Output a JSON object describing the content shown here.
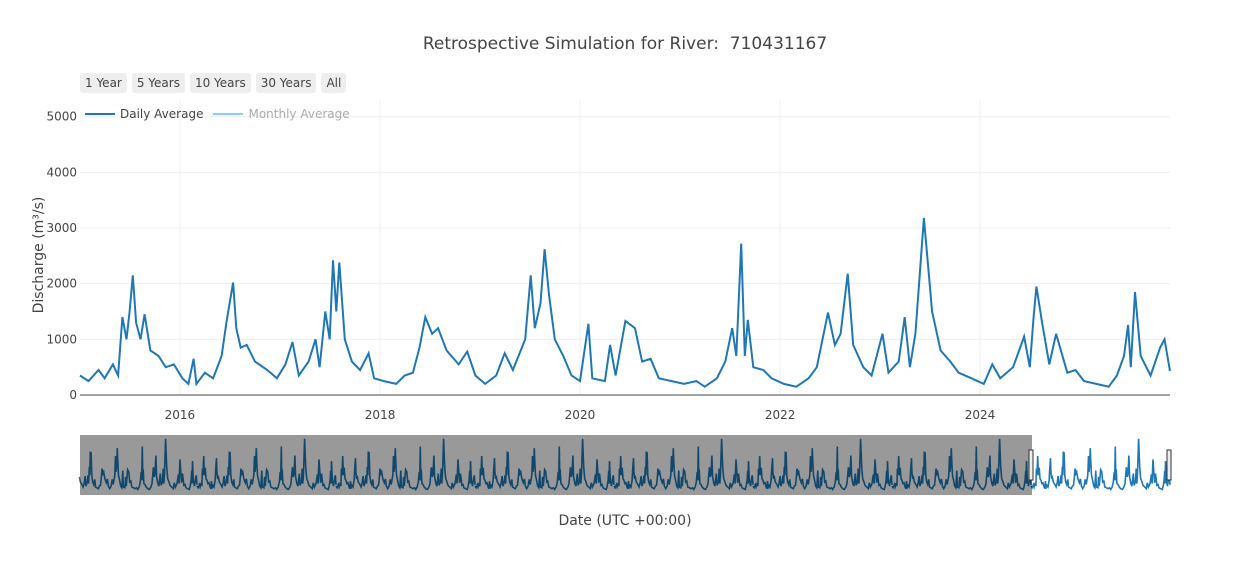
{
  "title": "Retrospective Simulation for River:  710431167",
  "range_buttons": [
    "1 Year",
    "5 Years",
    "10 Years",
    "30 Years",
    "All"
  ],
  "legend": [
    {
      "name": "Daily Average",
      "color": "#1f77b4",
      "visible": true
    },
    {
      "name": "Monthly Average",
      "color": "#87cefa",
      "visible": false
    }
  ],
  "chart_data": {
    "type": "line",
    "title": "Retrospective Simulation for River:  710431167",
    "xlabel": "Date (UTC +00:00)",
    "ylabel": "Discharge (m³/s)",
    "xlim": [
      "2015-01-01",
      "2025-11-25"
    ],
    "ylim": [
      0,
      5300
    ],
    "xticks": [
      "2016",
      "2018",
      "2020",
      "2022",
      "2024"
    ],
    "yticks": [
      "0",
      "1000",
      "2000",
      "3000",
      "4000",
      "5000"
    ],
    "grid": true,
    "legend_position": "top-left",
    "rangeslider": true,
    "series": [
      {
        "name": "Daily Average",
        "color": "#1f77b4",
        "points": [
          [
            "2015-01-01",
            350
          ],
          [
            "2015-02-01",
            250
          ],
          [
            "2015-03-10",
            450
          ],
          [
            "2015-04-01",
            300
          ],
          [
            "2015-05-01",
            550
          ],
          [
            "2015-05-20",
            350
          ],
          [
            "2015-06-05",
            1400
          ],
          [
            "2015-06-20",
            1000
          ],
          [
            "2015-07-01",
            1500
          ],
          [
            "2015-07-13",
            2150
          ],
          [
            "2015-07-25",
            1300
          ],
          [
            "2015-08-10",
            1000
          ],
          [
            "2015-08-25",
            1450
          ],
          [
            "2015-09-15",
            800
          ],
          [
            "2015-10-15",
            700
          ],
          [
            "2015-11-10",
            500
          ],
          [
            "2015-12-10",
            550
          ],
          [
            "2016-01-10",
            300
          ],
          [
            "2016-02-01",
            200
          ],
          [
            "2016-02-20",
            650
          ],
          [
            "2016-03-01",
            200
          ],
          [
            "2016-04-01",
            400
          ],
          [
            "2016-05-01",
            300
          ],
          [
            "2016-06-01",
            700
          ],
          [
            "2016-06-20",
            1350
          ],
          [
            "2016-07-13",
            2020
          ],
          [
            "2016-07-25",
            1200
          ],
          [
            "2016-08-10",
            850
          ],
          [
            "2016-09-01",
            900
          ],
          [
            "2016-10-01",
            600
          ],
          [
            "2016-11-15",
            450
          ],
          [
            "2016-12-20",
            300
          ],
          [
            "2017-01-20",
            550
          ],
          [
            "2017-02-15",
            950
          ],
          [
            "2017-03-10",
            350
          ],
          [
            "2017-04-15",
            600
          ],
          [
            "2017-05-10",
            1000
          ],
          [
            "2017-05-25",
            500
          ],
          [
            "2017-06-15",
            1500
          ],
          [
            "2017-07-01",
            1000
          ],
          [
            "2017-07-13",
            2420
          ],
          [
            "2017-07-25",
            1500
          ],
          [
            "2017-08-05",
            2380
          ],
          [
            "2017-08-25",
            1000
          ],
          [
            "2017-09-20",
            600
          ],
          [
            "2017-10-20",
            450
          ],
          [
            "2017-11-20",
            750
          ],
          [
            "2017-12-10",
            300
          ],
          [
            "2018-01-15",
            250
          ],
          [
            "2018-03-01",
            200
          ],
          [
            "2018-04-01",
            350
          ],
          [
            "2018-05-01",
            400
          ],
          [
            "2018-05-25",
            850
          ],
          [
            "2018-06-15",
            1400
          ],
          [
            "2018-07-10",
            1100
          ],
          [
            "2018-08-01",
            1200
          ],
          [
            "2018-09-01",
            800
          ],
          [
            "2018-10-15",
            550
          ],
          [
            "2018-11-15",
            780
          ],
          [
            "2018-12-15",
            350
          ],
          [
            "2019-01-20",
            200
          ],
          [
            "2019-03-01",
            350
          ],
          [
            "2019-04-01",
            750
          ],
          [
            "2019-05-01",
            450
          ],
          [
            "2019-06-15",
            1000
          ],
          [
            "2019-07-05",
            2150
          ],
          [
            "2019-07-20",
            1200
          ],
          [
            "2019-08-10",
            1650
          ],
          [
            "2019-08-25",
            2620
          ],
          [
            "2019-09-10",
            1800
          ],
          [
            "2019-10-01",
            1000
          ],
          [
            "2019-11-01",
            700
          ],
          [
            "2019-12-01",
            350
          ],
          [
            "2020-01-01",
            250
          ],
          [
            "2020-02-01",
            1280
          ],
          [
            "2020-02-15",
            300
          ],
          [
            "2020-04-01",
            250
          ],
          [
            "2020-04-20",
            900
          ],
          [
            "2020-05-10",
            350
          ],
          [
            "2020-06-15",
            1330
          ],
          [
            "2020-07-20",
            1200
          ],
          [
            "2020-08-15",
            600
          ],
          [
            "2020-09-15",
            650
          ],
          [
            "2020-10-15",
            300
          ],
          [
            "2020-12-01",
            250
          ],
          [
            "2021-01-15",
            200
          ],
          [
            "2021-03-01",
            250
          ],
          [
            "2021-04-01",
            150
          ],
          [
            "2021-05-15",
            300
          ],
          [
            "2021-06-15",
            600
          ],
          [
            "2021-07-10",
            1200
          ],
          [
            "2021-07-25",
            700
          ],
          [
            "2021-08-12",
            2720
          ],
          [
            "2021-08-25",
            700
          ],
          [
            "2021-09-05",
            1350
          ],
          [
            "2021-09-25",
            500
          ],
          [
            "2021-11-01",
            450
          ],
          [
            "2021-12-01",
            300
          ],
          [
            "2022-01-15",
            200
          ],
          [
            "2022-03-01",
            150
          ],
          [
            "2022-04-15",
            300
          ],
          [
            "2022-05-15",
            500
          ],
          [
            "2022-06-25",
            1480
          ],
          [
            "2022-07-20",
            900
          ],
          [
            "2022-08-10",
            1100
          ],
          [
            "2022-09-05",
            2180
          ],
          [
            "2022-09-25",
            900
          ],
          [
            "2022-11-01",
            500
          ],
          [
            "2022-12-01",
            350
          ],
          [
            "2023-01-10",
            1100
          ],
          [
            "2023-02-01",
            400
          ],
          [
            "2023-03-10",
            600
          ],
          [
            "2023-04-01",
            1400
          ],
          [
            "2023-04-20",
            500
          ],
          [
            "2023-05-10",
            1100
          ],
          [
            "2023-06-10",
            3180
          ],
          [
            "2023-07-10",
            1500
          ],
          [
            "2023-08-10",
            800
          ],
          [
            "2023-09-15",
            600
          ],
          [
            "2023-10-15",
            400
          ],
          [
            "2023-12-01",
            300
          ],
          [
            "2024-01-15",
            200
          ],
          [
            "2024-02-15",
            550
          ],
          [
            "2024-03-15",
            300
          ],
          [
            "2024-05-01",
            500
          ],
          [
            "2024-06-10",
            1050
          ],
          [
            "2024-07-01",
            500
          ],
          [
            "2024-07-15",
            1400
          ],
          [
            "2024-07-25",
            1950
          ],
          [
            "2024-08-15",
            1300
          ],
          [
            "2024-09-10",
            550
          ],
          [
            "2024-10-05",
            1100
          ],
          [
            "2024-11-15",
            400
          ],
          [
            "2024-12-15",
            450
          ],
          [
            "2025-01-15",
            250
          ],
          [
            "2025-03-01",
            200
          ],
          [
            "2025-04-15",
            150
          ],
          [
            "2025-05-15",
            350
          ],
          [
            "2025-06-10",
            700
          ],
          [
            "2025-06-25",
            1260
          ],
          [
            "2025-07-05",
            500
          ],
          [
            "2025-07-20",
            1850
          ],
          [
            "2025-08-10",
            700
          ],
          [
            "2025-09-15",
            350
          ],
          [
            "2025-10-20",
            850
          ],
          [
            "2025-11-05",
            1000
          ],
          [
            "2025-11-25",
            430
          ]
        ]
      }
    ]
  }
}
